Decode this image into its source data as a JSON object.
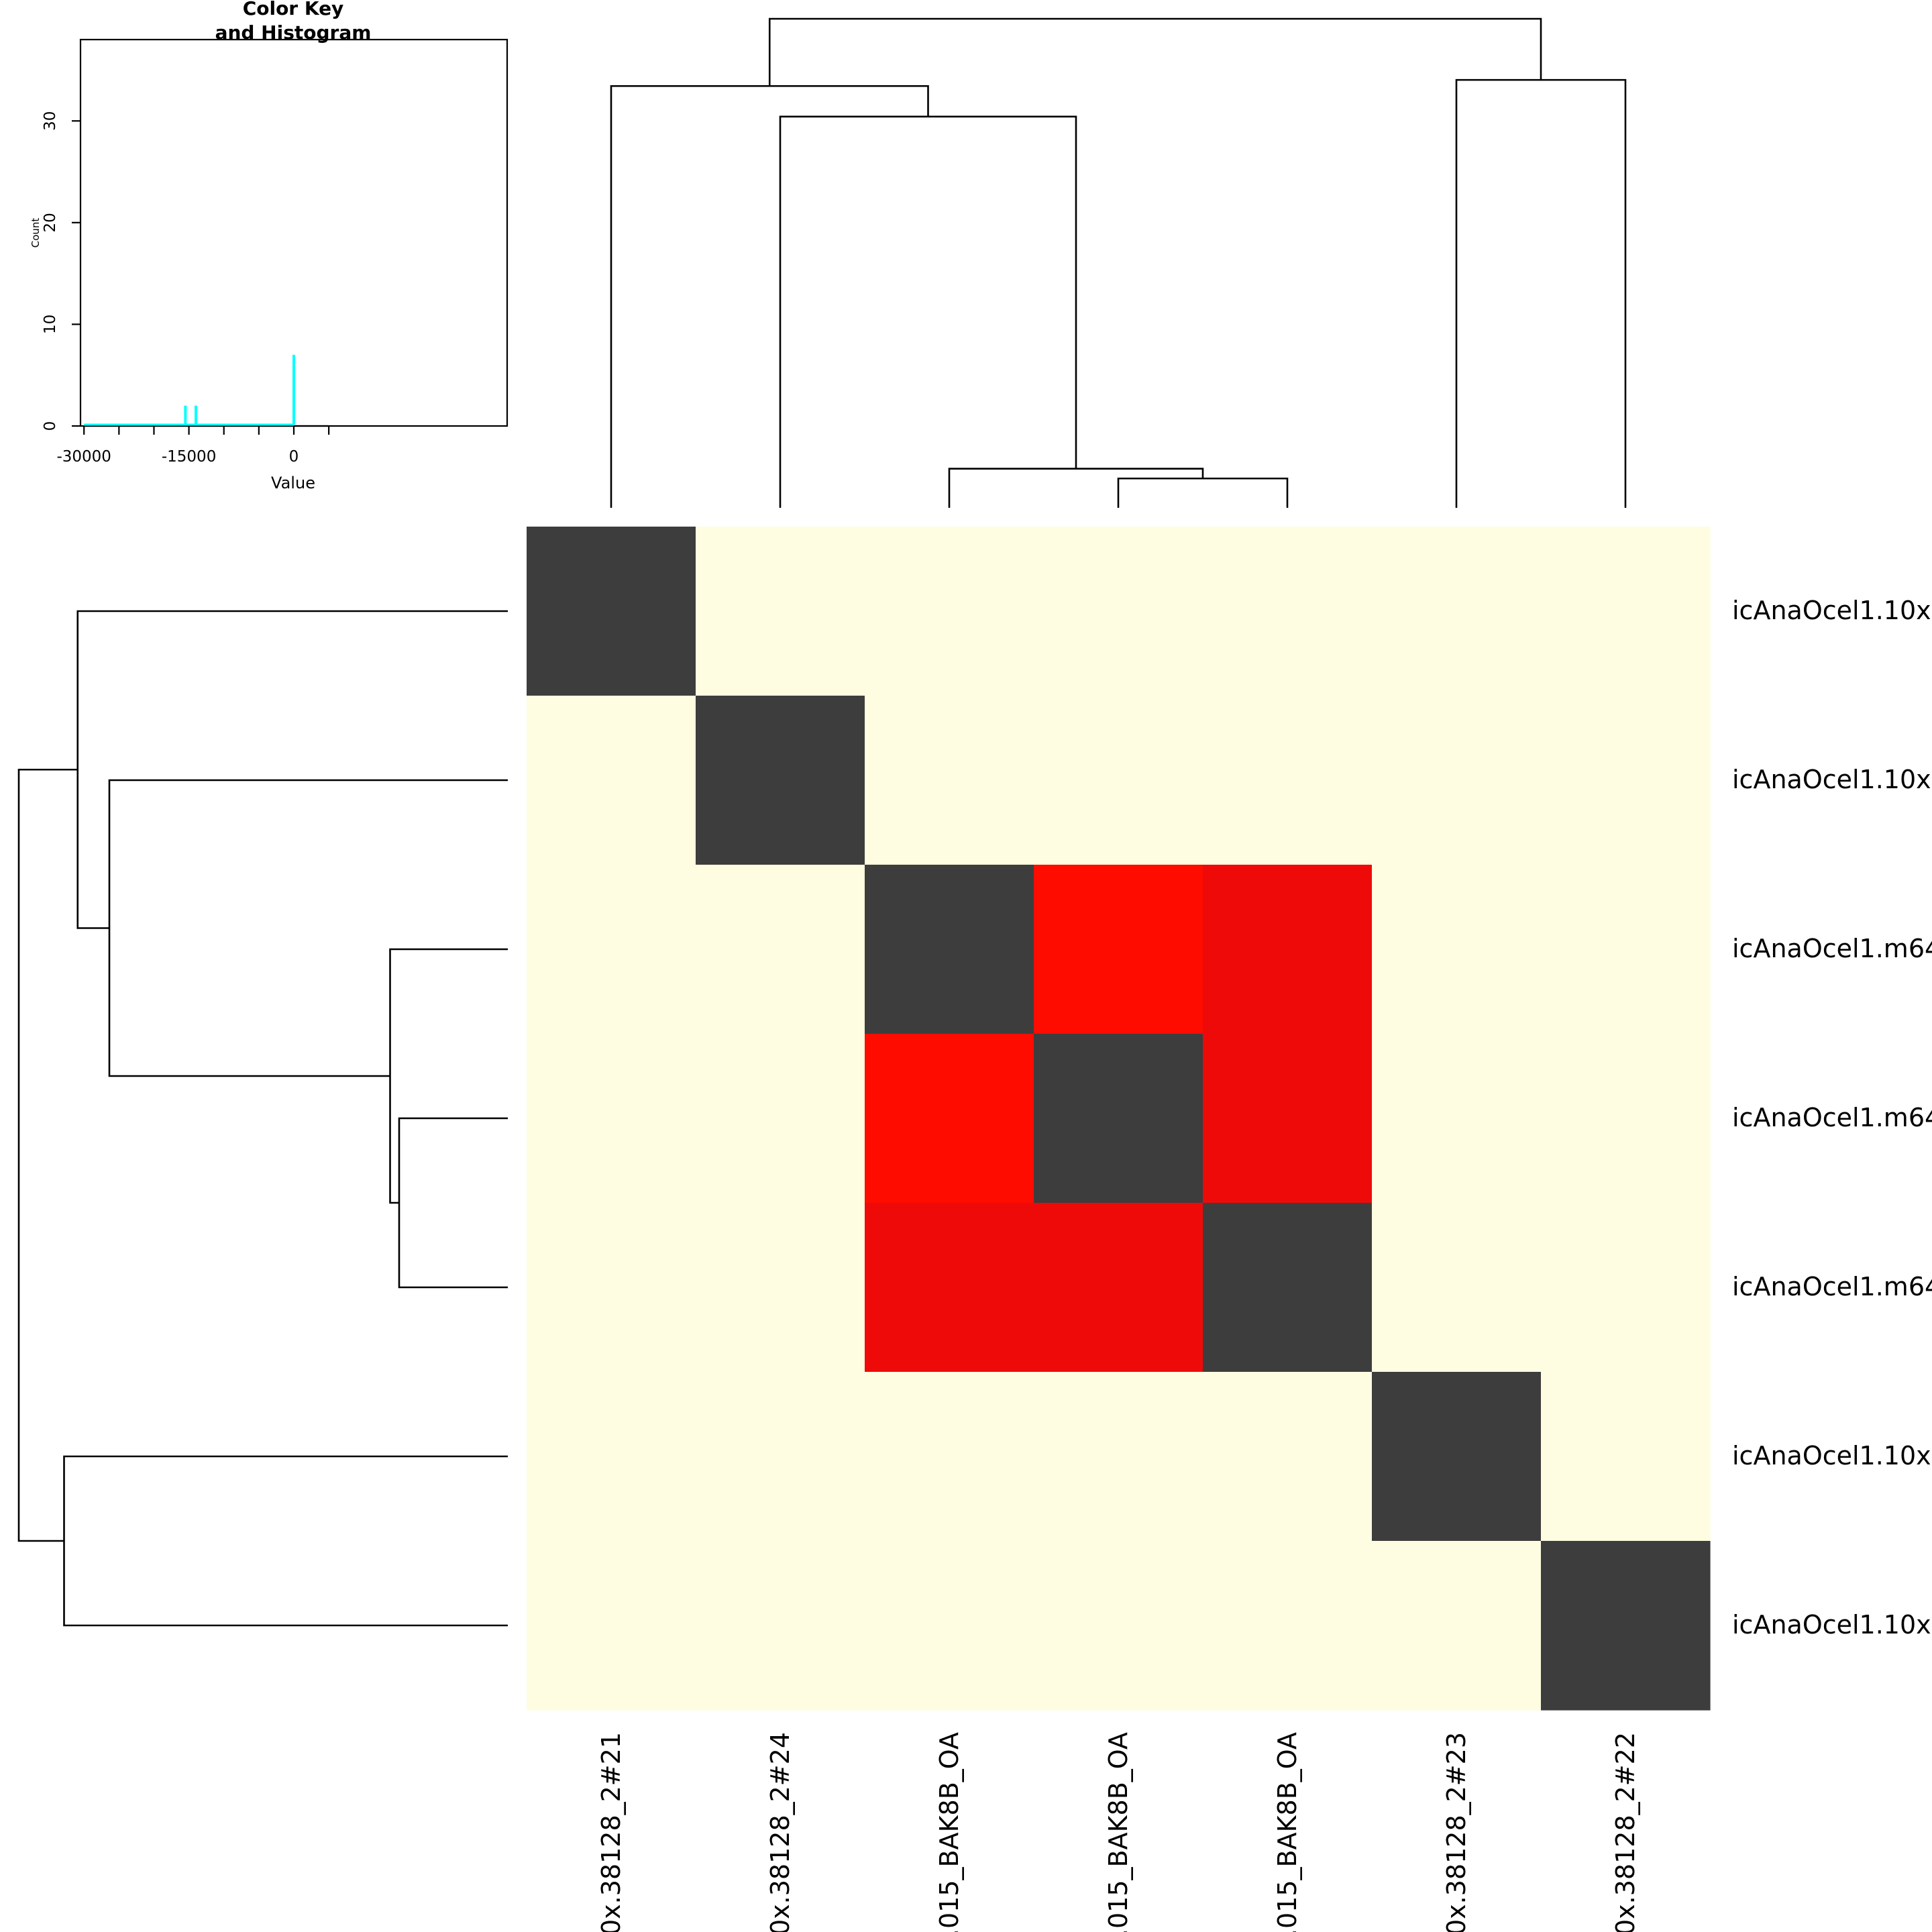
{
  "chart_data": {
    "type": "heatmap",
    "rows": [
      "icAnaOcel1.10x",
      "icAnaOcel1.10x",
      "icAnaOcel1.m64",
      "icAnaOcel1.m64",
      "icAnaOcel1.m64",
      "icAnaOcel1.10x",
      "icAnaOcel1.10x"
    ],
    "columns": [
      "0x.38128_2#21",
      "0x.38128_2#24",
      ".015_BAK8B_OA",
      ".015_BAK8B_OA",
      ".015_BAK8B_OA",
      "0x.38128_2#23",
      "0x.38128_2#22"
    ],
    "cell_colors": [
      [
        "#3d3d3d",
        "#fefde1",
        "#fefde1",
        "#fefde1",
        "#fefde1",
        "#fefde1",
        "#fefde1"
      ],
      [
        "#fefde1",
        "#3d3d3d",
        "#fefde1",
        "#fefde1",
        "#fefde1",
        "#fefde1",
        "#fefde1"
      ],
      [
        "#fefde1",
        "#fefde1",
        "#3d3d3d",
        "#fe0c00",
        "#ef0a0a",
        "#fefde1",
        "#fefde1"
      ],
      [
        "#fefde1",
        "#fefde1",
        "#fe0c00",
        "#3d3d3d",
        "#ef0a0a",
        "#fefde1",
        "#fefde1"
      ],
      [
        "#fefde1",
        "#fefde1",
        "#ef0a0a",
        "#ef0a0a",
        "#3d3d3d",
        "#fefde1",
        "#fefde1"
      ],
      [
        "#fefde1",
        "#fefde1",
        "#fefde1",
        "#fefde1",
        "#fefde1",
        "#3d3d3d",
        "#fefde1"
      ],
      [
        "#fefde1",
        "#fefde1",
        "#fefde1",
        "#fefde1",
        "#fefde1",
        "#fefde1",
        "#3d3d3d"
      ]
    ],
    "column_dendrogram_merges": [
      {
        "left": 3,
        "right": 4,
        "height": 2.4
      },
      {
        "left": 2,
        "right": [
          3,
          4
        ],
        "height": 3.2
      },
      {
        "left": 1,
        "right": [
          2,
          3,
          4
        ],
        "height": 32
      },
      {
        "left": 0,
        "right": [
          1,
          2,
          3,
          4
        ],
        "height": 34.5
      },
      {
        "left": 5,
        "right": 6,
        "height": 35
      },
      {
        "left": [
          0,
          1,
          2,
          3,
          4
        ],
        "right": [
          5,
          6
        ],
        "height": 40
      }
    ],
    "row_dendrogram_merges": [
      {
        "top": 3,
        "bottom": 4,
        "height": 2.4
      },
      {
        "top": 2,
        "bottom": [
          3,
          4
        ],
        "height": 2.6
      },
      {
        "top": 1,
        "bottom": [
          2,
          3,
          4
        ],
        "height": 8.8
      },
      {
        "top": 0,
        "bottom": [
          1,
          2,
          3,
          4
        ],
        "height": 9.5
      },
      {
        "top": 5,
        "bottom": 6,
        "height": 9.8
      },
      {
        "top": [
          0,
          1,
          2,
          3,
          4
        ],
        "bottom": [
          5,
          6
        ],
        "height": 10.8
      }
    ],
    "color_key": {
      "title_line1": "Color Key",
      "title_line2": "and Histogram",
      "xlabel": "Value",
      "ylabel": "Count",
      "x_ticks": [
        -30000,
        -15000,
        0
      ],
      "x_ticklabels": [
        "-30000",
        "-15000",
        "0"
      ],
      "x_minor_ticks": [
        -30000,
        -25000,
        -20000,
        -15000,
        -10000,
        -5000,
        0,
        5000
      ],
      "xlim": [
        -30500,
        30500
      ],
      "y_ticks": [
        0,
        10,
        20,
        30
      ],
      "ylim": [
        0,
        38
      ],
      "histogram_color": "#00ffff",
      "histogram": [
        {
          "x": -15500,
          "count": 2
        },
        {
          "x": -14000,
          "count": 2
        },
        {
          "x": 0,
          "count": 7
        }
      ],
      "histogram_baseline": [
        -30000,
        0
      ]
    }
  }
}
